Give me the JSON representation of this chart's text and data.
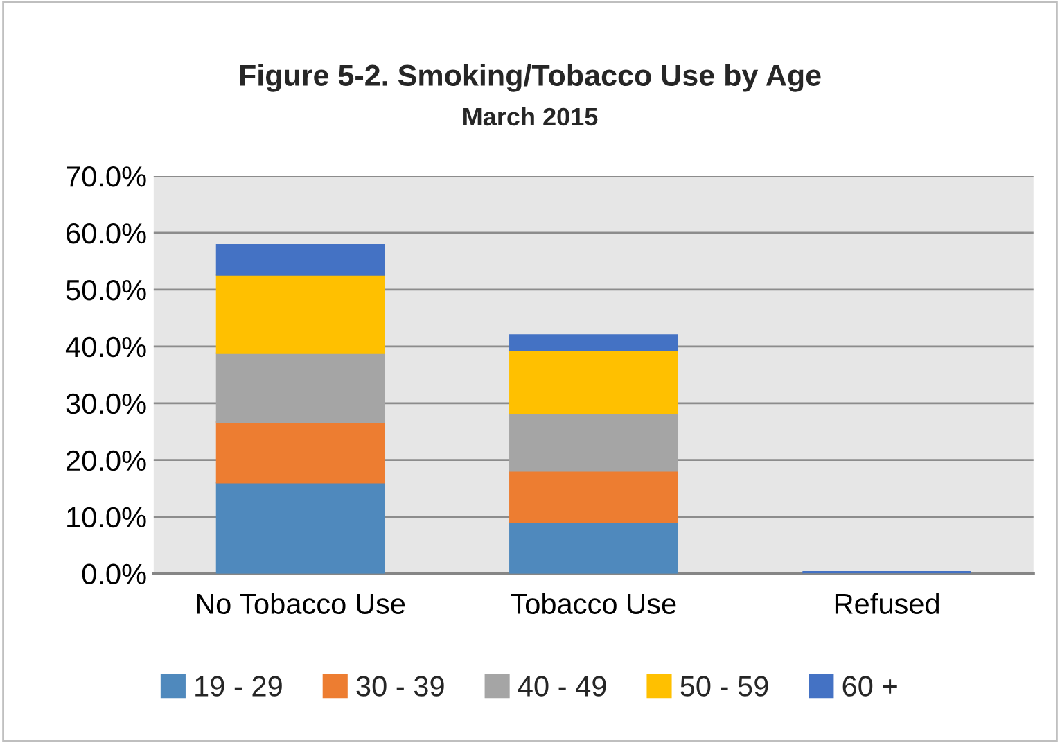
{
  "chart_data": {
    "type": "bar",
    "title": "Figure 5-2. Smoking/Tobacco Use by Age",
    "subtitle": "March 2015",
    "categories": [
      "No Tobacco Use",
      "Tobacco Use",
      "Refused"
    ],
    "stacked": true,
    "series": [
      {
        "name": "19 - 29",
        "color": "#4f89bd",
        "values": [
          16.0,
          9.0,
          0.0
        ]
      },
      {
        "name": "30 - 39",
        "color": "#ed7d31",
        "values": [
          10.7,
          9.1,
          0.0
        ]
      },
      {
        "name": "40 - 49",
        "color": "#a5a5a5",
        "values": [
          12.1,
          10.1,
          0.0
        ]
      },
      {
        "name": "50 - 59",
        "color": "#ffc000",
        "values": [
          13.8,
          11.2,
          0.0
        ]
      },
      {
        "name": "60 +",
        "color": "#4472c4",
        "values": [
          5.3,
          2.6,
          0.3
        ]
      }
    ],
    "ylim": [
      0,
      70
    ],
    "yticks": [
      {
        "value": 0,
        "label": "0.0%"
      },
      {
        "value": 10,
        "label": "10.0%"
      },
      {
        "value": 20,
        "label": "20.0%"
      },
      {
        "value": 30,
        "label": "30.0%"
      },
      {
        "value": 40,
        "label": "40.0%"
      },
      {
        "value": 50,
        "label": "50.0%"
      },
      {
        "value": 60,
        "label": "60.0%"
      },
      {
        "value": 70,
        "label": "70.0%"
      }
    ],
    "grid": "y",
    "legend": "bottom"
  }
}
